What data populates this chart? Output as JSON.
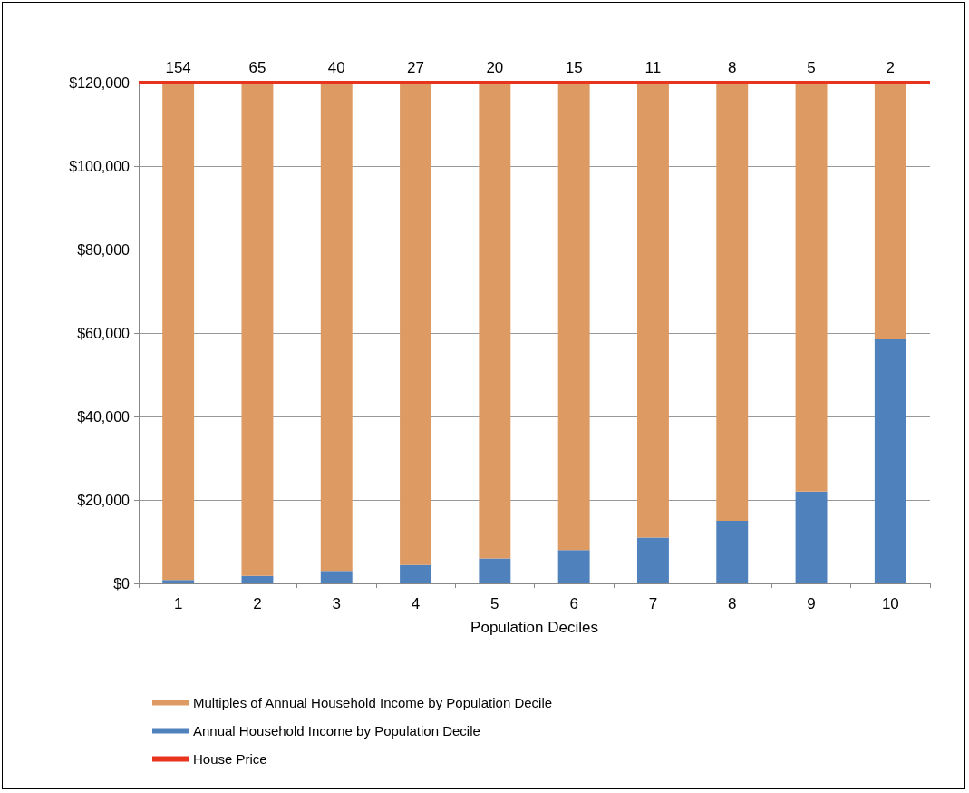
{
  "chart_data": {
    "type": "bar",
    "stacked": true,
    "xlabel": "Population Deciles",
    "categories": [
      "1",
      "2",
      "3",
      "4",
      "5",
      "6",
      "7",
      "8",
      "9",
      "10"
    ],
    "series": [
      {
        "name": "Annual Household Income by Population Decile",
        "color": "#4f81bd",
        "values": [
          800,
          1800,
          3000,
          4400,
          6000,
          8000,
          11000,
          15000,
          22000,
          58500
        ]
      },
      {
        "name": "Multiples of Annual Household Income by Population Decile",
        "color": "#dd9a62",
        "values": [
          119200,
          118200,
          117000,
          115600,
          114000,
          112000,
          109000,
          105000,
          98000,
          61500
        ]
      }
    ],
    "annotations": [
      {
        "text": "154",
        "x": "1",
        "y": 120000
      },
      {
        "text": "65",
        "x": "2",
        "y": 120000
      },
      {
        "text": "40",
        "x": "3",
        "y": 120000
      },
      {
        "text": "27",
        "x": "4",
        "y": 120000
      },
      {
        "text": "20",
        "x": "5",
        "y": 120000
      },
      {
        "text": "15",
        "x": "6",
        "y": 120000
      },
      {
        "text": "11",
        "x": "7",
        "y": 120000
      },
      {
        "text": "8",
        "x": "8",
        "y": 120000
      },
      {
        "text": "5",
        "x": "9",
        "y": 120000
      },
      {
        "text": "2",
        "x": "10",
        "y": 120000
      }
    ],
    "ref_lines": [
      {
        "axis": "y",
        "value": 120000,
        "label": "House Price",
        "color": "#e8341c"
      }
    ],
    "ylim": [
      0,
      120000
    ],
    "yticks": [
      {
        "value": 0,
        "label": "$0"
      },
      {
        "value": 20000,
        "label": "$20,000"
      },
      {
        "value": 40000,
        "label": "$40,000"
      },
      {
        "value": 60000,
        "label": "$60,000"
      },
      {
        "value": 80000,
        "label": "$80,000"
      },
      {
        "value": 100000,
        "label": "$100,000"
      },
      {
        "value": 120000,
        "label": "$120,000"
      }
    ],
    "grid": "y",
    "legend": "bottom left"
  }
}
